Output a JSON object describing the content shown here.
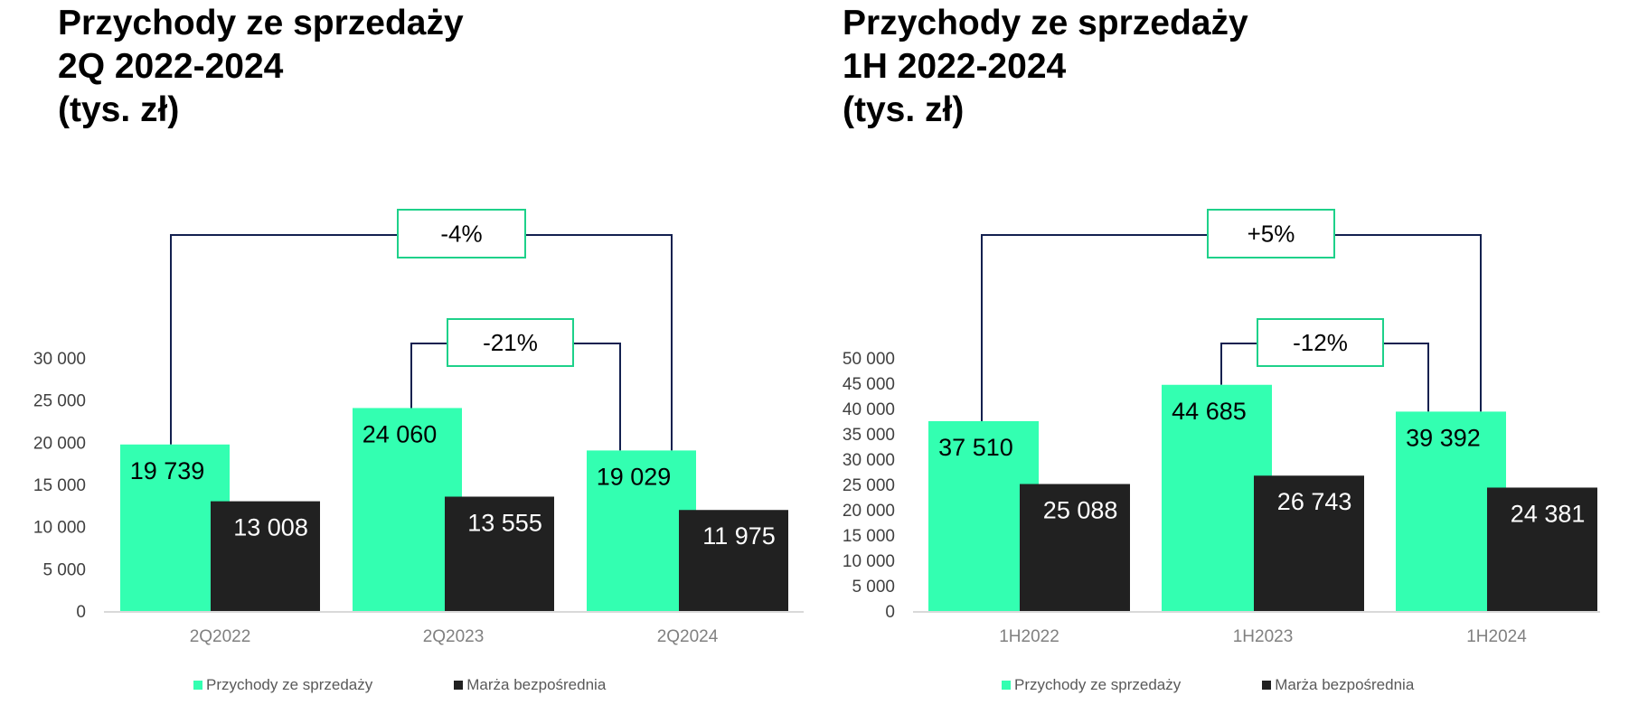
{
  "colors": {
    "revenue": "#33ffb1",
    "margin": "#212121",
    "bracket": "#13204f",
    "box_border": "#1ed18a",
    "axis": "#d9d9d9",
    "tick_text": "#404040",
    "cat_text": "#808080"
  },
  "chart_data": [
    {
      "type": "bar",
      "title_lines": [
        "Przychody ze sprzedaży",
        "2Q 2022-2024",
        "(tys. zł)"
      ],
      "categories": [
        "2Q2022",
        "2Q2023",
        "2Q2024"
      ],
      "series": [
        {
          "name": "Przychody ze sprzedaży",
          "values": [
            19739,
            24060,
            19029
          ],
          "labels": [
            "19 739",
            "24 060",
            "19 029"
          ]
        },
        {
          "name": "Marża bezpośrednia",
          "values": [
            13008,
            13555,
            11975
          ],
          "labels": [
            "13 008",
            "13 555",
            "11 975"
          ]
        }
      ],
      "ylim": [
        0,
        30000
      ],
      "yticks": [
        0,
        5000,
        10000,
        15000,
        20000,
        25000,
        30000
      ],
      "ytick_labels": [
        "0",
        "5 000",
        "10 000",
        "15 000",
        "20 000",
        "25 000",
        "30 000"
      ],
      "annotations": [
        {
          "text": "-4%",
          "from": "2Q2022",
          "to": "2Q2024"
        },
        {
          "text": "-21%",
          "from": "2Q2023",
          "to": "2Q2024"
        }
      ],
      "legend": "bottom"
    },
    {
      "type": "bar",
      "title_lines": [
        "Przychody ze sprzedaży",
        "1H 2022-2024",
        "(tys. zł)"
      ],
      "categories": [
        "1H2022",
        "1H2023",
        "1H2024"
      ],
      "series": [
        {
          "name": "Przychody ze sprzedaży",
          "values": [
            37510,
            44685,
            39392
          ],
          "labels": [
            "37 510",
            "44 685",
            "39 392"
          ]
        },
        {
          "name": "Marża bezpośrednia",
          "values": [
            25088,
            26743,
            24381
          ],
          "labels": [
            "25 088",
            "26 743",
            "24 381"
          ]
        }
      ],
      "ylim": [
        0,
        50000
      ],
      "yticks": [
        0,
        5000,
        10000,
        15000,
        20000,
        25000,
        30000,
        35000,
        40000,
        45000,
        50000
      ],
      "ytick_labels": [
        "0",
        "5 000",
        "10 000",
        "15 000",
        "20 000",
        "25 000",
        "30 000",
        "35 000",
        "40 000",
        "45 000",
        "50 000"
      ],
      "annotations": [
        {
          "text": "+5%",
          "from": "1H2022",
          "to": "1H2024"
        },
        {
          "text": "-12%",
          "from": "1H2023",
          "to": "1H2024"
        }
      ],
      "legend": "bottom"
    }
  ]
}
